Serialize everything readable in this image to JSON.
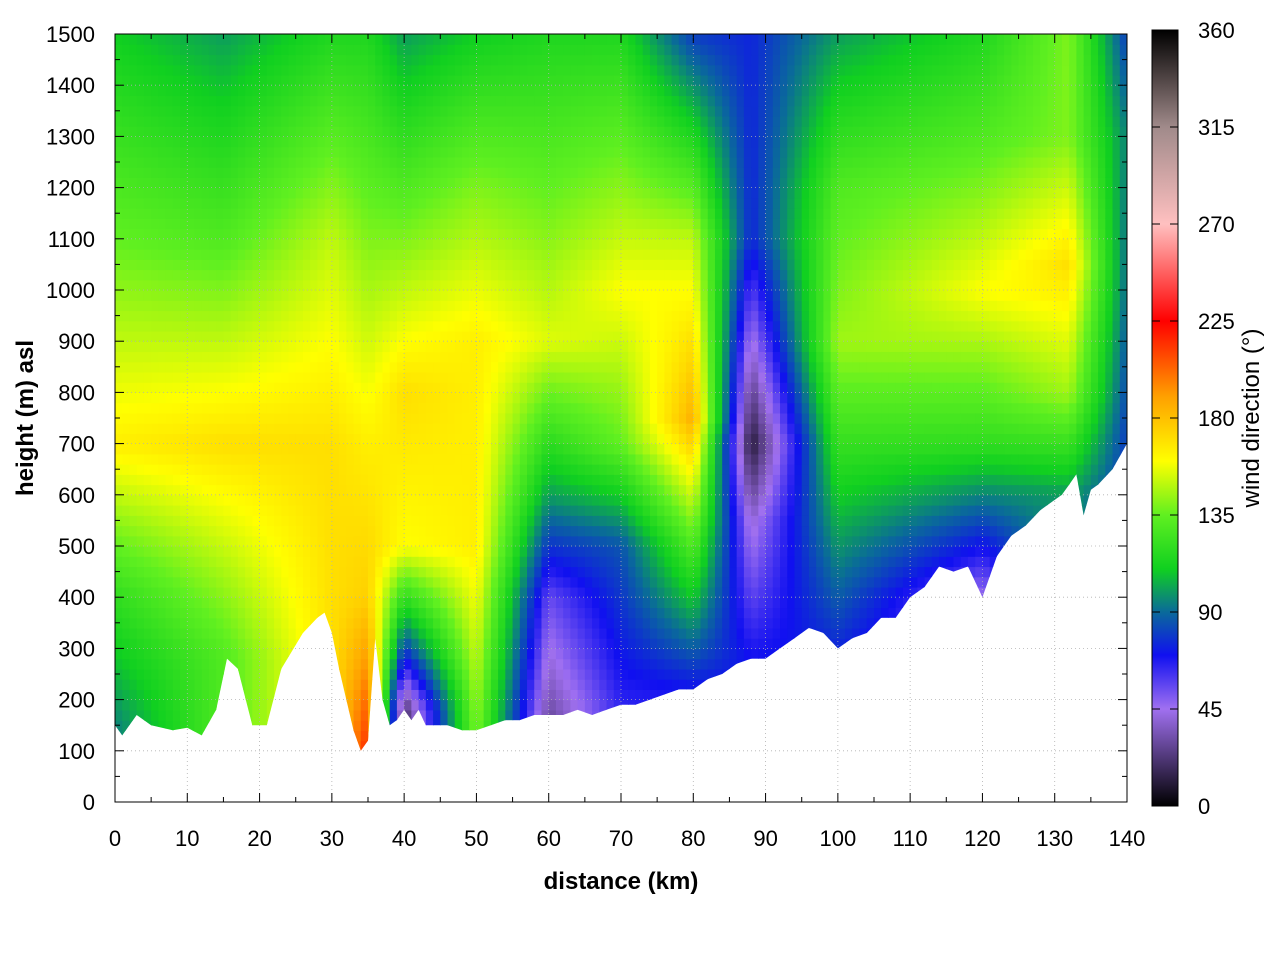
{
  "chart_data": {
    "type": "heatmap",
    "xlabel": "distance (km)",
    "ylabel": "height (m) asl",
    "colorbar_label": "wind direction (°)",
    "xlim": [
      0,
      140
    ],
    "ylim": [
      0,
      1500
    ],
    "x_ticks": [
      0,
      10,
      20,
      30,
      40,
      50,
      60,
      70,
      80,
      90,
      100,
      110,
      120,
      130,
      140
    ],
    "y_ticks": [
      0,
      100,
      200,
      300,
      400,
      500,
      600,
      700,
      800,
      900,
      1000,
      1100,
      1200,
      1300,
      1400,
      1500
    ],
    "colorbar_range": [
      0,
      360
    ],
    "colorbar_ticks": [
      0,
      45,
      90,
      135,
      180,
      225,
      270,
      315,
      360
    ],
    "colorbar_stops": [
      {
        "value": 0,
        "color": "#000000"
      },
      {
        "value": 45,
        "color": "#a070f0"
      },
      {
        "value": 70,
        "color": "#1010f0"
      },
      {
        "value": 90,
        "color": "#0a6a9a"
      },
      {
        "value": 110,
        "color": "#10d020"
      },
      {
        "value": 135,
        "color": "#60f020"
      },
      {
        "value": 160,
        "color": "#ffff00"
      },
      {
        "value": 190,
        "color": "#ffa000"
      },
      {
        "value": 225,
        "color": "#ff0000"
      },
      {
        "value": 270,
        "color": "#ffc0c0"
      },
      {
        "value": 315,
        "color": "#a08a8a"
      },
      {
        "value": 360,
        "color": "#000000"
      }
    ],
    "grid": true,
    "terrain_height_m": {
      "x": [
        0,
        1,
        3,
        5,
        8,
        10,
        12,
        14,
        15.5,
        17,
        19,
        21,
        23,
        26,
        28,
        29,
        30,
        31,
        32,
        33,
        34,
        35,
        36,
        37,
        38,
        39,
        40,
        41,
        42,
        43,
        44,
        46,
        48,
        50,
        52,
        54,
        56,
        58,
        60,
        62,
        64,
        66,
        68,
        70,
        72,
        74,
        76,
        78,
        80,
        82,
        84,
        86,
        88,
        90,
        92,
        94,
        96,
        98,
        100,
        102,
        104,
        106,
        108,
        110,
        112,
        114,
        116,
        118,
        119,
        120,
        122,
        124,
        126,
        128,
        130,
        131,
        132,
        133,
        134,
        135,
        136,
        138,
        140
      ],
      "y": [
        150,
        130,
        170,
        150,
        140,
        145,
        130,
        180,
        280,
        260,
        150,
        150,
        260,
        330,
        360,
        370,
        330,
        260,
        200,
        140,
        100,
        120,
        320,
        200,
        150,
        160,
        180,
        160,
        180,
        150,
        150,
        150,
        140,
        140,
        150,
        160,
        160,
        170,
        170,
        170,
        180,
        170,
        180,
        190,
        190,
        200,
        210,
        220,
        220,
        240,
        250,
        270,
        280,
        280,
        300,
        320,
        340,
        330,
        300,
        320,
        330,
        360,
        360,
        400,
        420,
        460,
        450,
        460,
        430,
        400,
        480,
        520,
        540,
        570,
        590,
        600,
        620,
        640,
        560,
        610,
        620,
        650,
        700
      ]
    },
    "direction_field": {
      "description_units": "degrees",
      "columns": [
        {
          "x": 0,
          "profile": [
            [
              150,
              95
            ],
            [
              400,
              120
            ],
            [
              700,
              165
            ],
            [
              1100,
              135
            ],
            [
              1500,
              110
            ]
          ]
        },
        {
          "x": 15,
          "profile": [
            [
              280,
              130
            ],
            [
              700,
              170
            ],
            [
              1100,
              130
            ],
            [
              1500,
              100
            ]
          ]
        },
        {
          "x": 30,
          "profile": [
            [
              370,
              170
            ],
            [
              700,
              170
            ],
            [
              1100,
              150
            ],
            [
              1500,
              115
            ]
          ]
        },
        {
          "x": 35,
          "profile": [
            [
              110,
              215
            ],
            [
              400,
              175
            ],
            [
              700,
              165
            ],
            [
              1100,
              140
            ],
            [
              1500,
              115
            ]
          ]
        },
        {
          "x": 40,
          "profile": [
            [
              180,
              20
            ],
            [
              300,
              80
            ],
            [
              500,
              160
            ],
            [
              800,
              170
            ],
            [
              1100,
              140
            ],
            [
              1500,
              100
            ]
          ]
        },
        {
          "x": 50,
          "profile": [
            [
              140,
              140
            ],
            [
              500,
              165
            ],
            [
              900,
              165
            ],
            [
              1200,
              140
            ],
            [
              1500,
              110
            ]
          ]
        },
        {
          "x": 60,
          "profile": [
            [
              170,
              30
            ],
            [
              400,
              55
            ],
            [
              600,
              100
            ],
            [
              900,
              155
            ],
            [
              1500,
              115
            ]
          ]
        },
        {
          "x": 70,
          "profile": [
            [
              190,
              65
            ],
            [
              500,
              85
            ],
            [
              700,
              135
            ],
            [
              1000,
              160
            ],
            [
              1500,
              115
            ]
          ]
        },
        {
          "x": 80,
          "profile": [
            [
              220,
              70
            ],
            [
              500,
              130
            ],
            [
              750,
              185
            ],
            [
              1100,
              150
            ],
            [
              1500,
              80
            ]
          ]
        },
        {
          "x": 88,
          "profile": [
            [
              280,
              70
            ],
            [
              550,
              40
            ],
            [
              700,
              10
            ],
            [
              1100,
              75
            ],
            [
              1500,
              75
            ]
          ]
        },
        {
          "x": 100,
          "profile": [
            [
              300,
              75
            ],
            [
              600,
              110
            ],
            [
              900,
              145
            ],
            [
              1200,
              130
            ],
            [
              1500,
              100
            ]
          ]
        },
        {
          "x": 120,
          "profile": [
            [
              400,
              45
            ],
            [
              700,
              120
            ],
            [
              1000,
              160
            ],
            [
              1300,
              130
            ],
            [
              1500,
              115
            ]
          ]
        },
        {
          "x": 132,
          "profile": [
            [
              600,
              100
            ],
            [
              800,
              145
            ],
            [
              1050,
              170
            ],
            [
              1300,
              140
            ],
            [
              1500,
              140
            ]
          ]
        },
        {
          "x": 140,
          "profile": [
            [
              700,
              80
            ],
            [
              1000,
              90
            ],
            [
              1300,
              95
            ],
            [
              1500,
              80
            ]
          ]
        }
      ]
    }
  }
}
